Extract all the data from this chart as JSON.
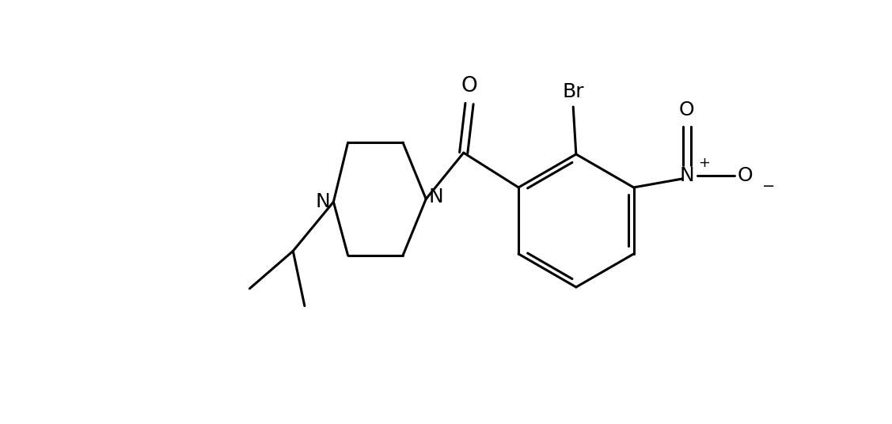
{
  "background_color": "#ffffff",
  "line_color": "#000000",
  "line_width": 2.2,
  "font_size": 17,
  "figsize": [
    11.27,
    5.36
  ],
  "dpi": 100,
  "xlim": [
    -1.0,
    12.5
  ],
  "ylim": [
    -1.5,
    5.8
  ]
}
